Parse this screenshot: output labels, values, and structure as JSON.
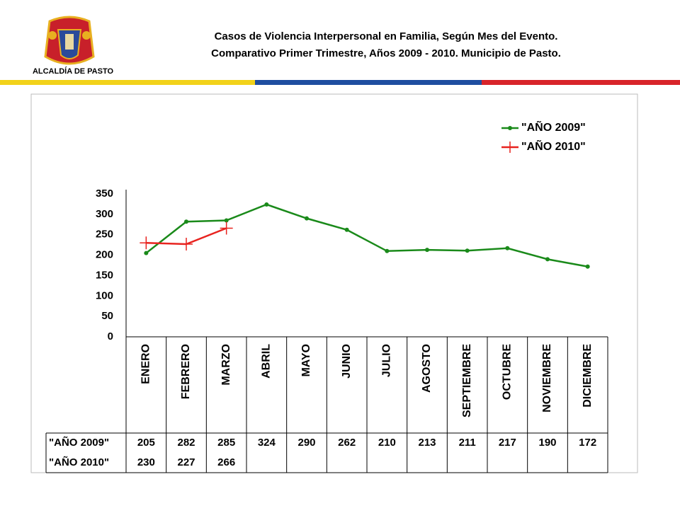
{
  "logo_text": "ALCALDÍA DE PASTO",
  "chart_data": {
    "type": "line",
    "title": [
      "Casos de Violencia Interpersonal en Familia, Según Mes del Evento.",
      "Comparativo Primer Trimestre,  Años 2009 - 2010. Municipio de Pasto."
    ],
    "categories": [
      "ENERO",
      "FEBRERO",
      "MARZO",
      "ABRIL",
      "MAYO",
      "JUNIO",
      "JULIO",
      "AGOSTO",
      "SEPTIEMBRE",
      "OCTUBRE",
      "NOVIEMBRE",
      "DICIEMBRE"
    ],
    "series": [
      {
        "name": "\"AÑO 2009\"",
        "color": "#1a8a1a",
        "marker": "dot",
        "values": [
          205,
          282,
          285,
          324,
          290,
          262,
          210,
          213,
          211,
          217,
          190,
          172
        ]
      },
      {
        "name": "\"AÑO 2010\"",
        "color": "#e8231f",
        "marker": "plus",
        "values": [
          230,
          227,
          266,
          null,
          null,
          null,
          null,
          null,
          null,
          null,
          null,
          null
        ]
      }
    ],
    "ylim": [
      0,
      350
    ],
    "yticks": [
      0,
      50,
      100,
      150,
      200,
      250,
      300,
      350
    ],
    "grid": false,
    "legend": "upper right",
    "data_table": true
  }
}
